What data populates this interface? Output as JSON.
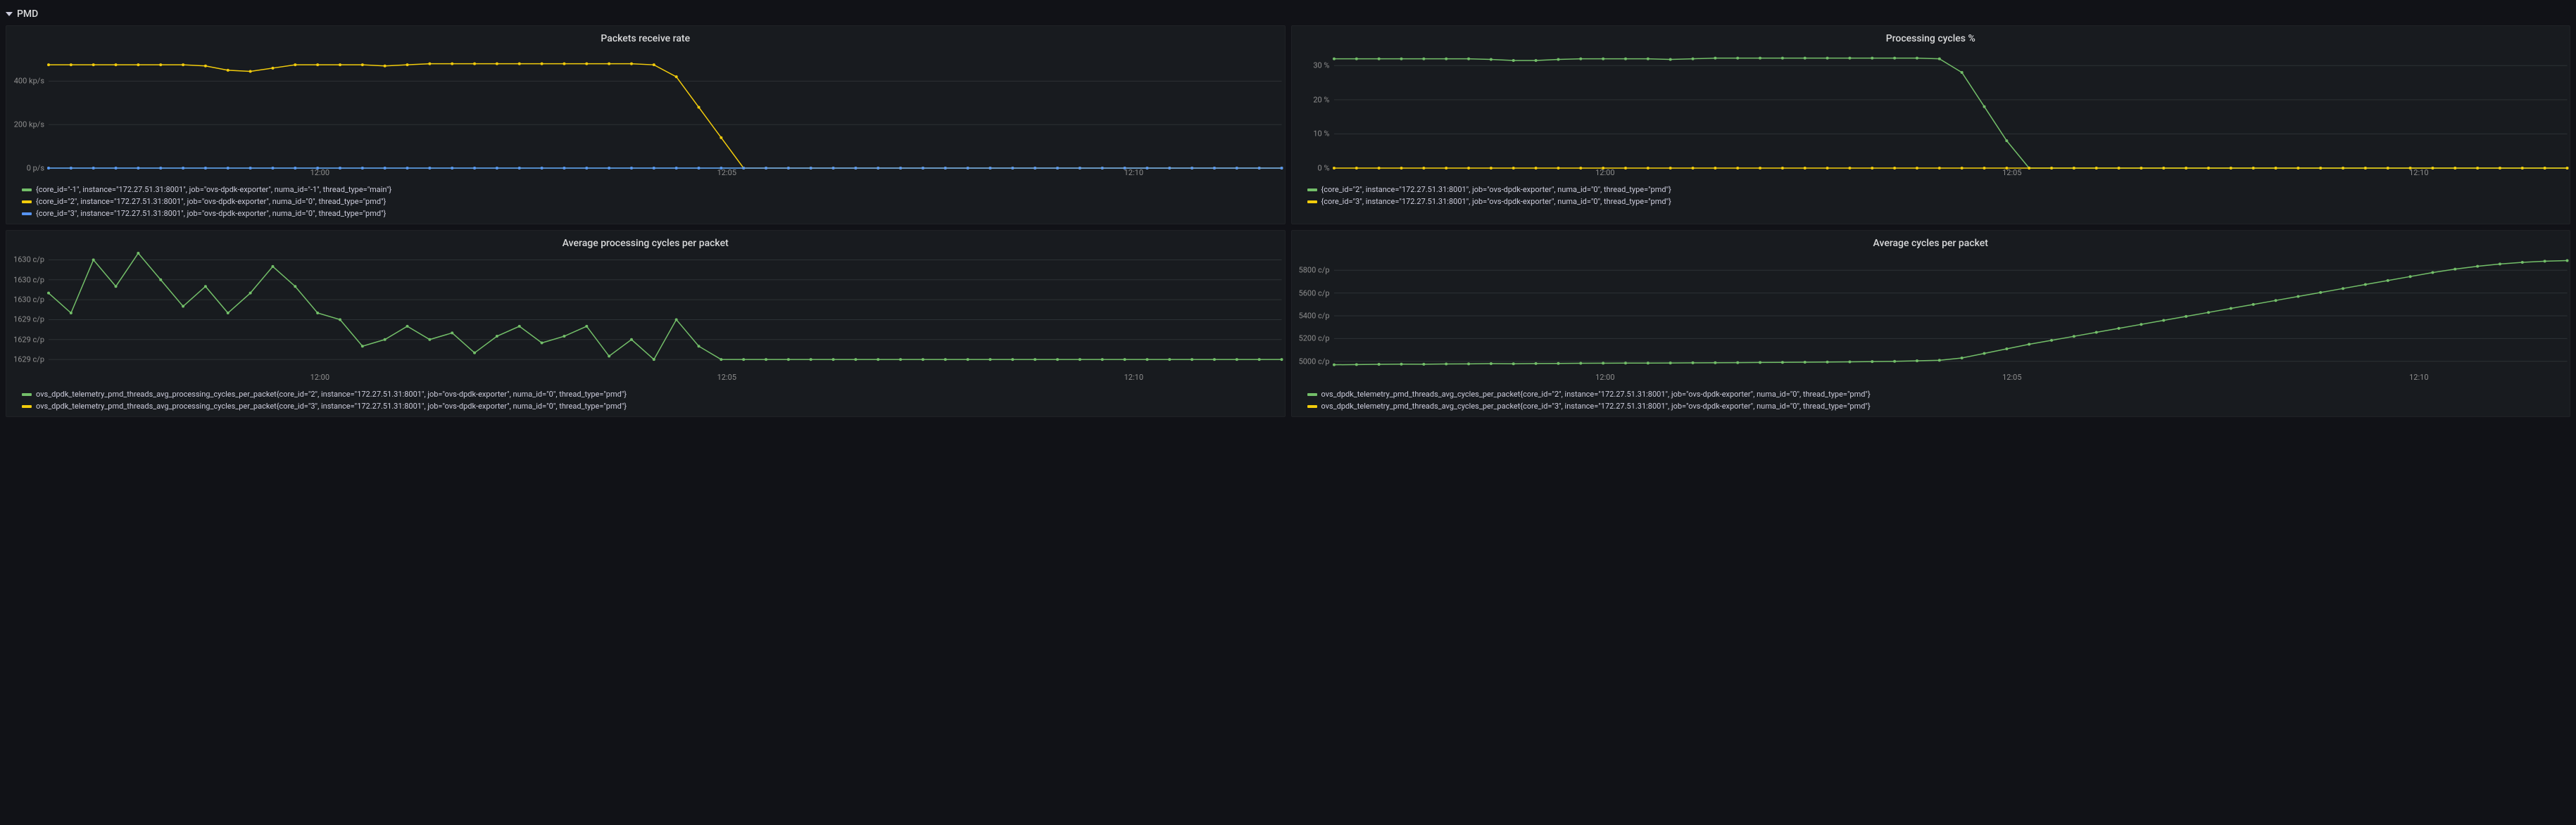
{
  "row": {
    "title": "PMD"
  },
  "colors": {
    "green": "#73bf69",
    "yellow": "#f2cc0c",
    "blue": "#5794f2",
    "bg": "#181b1f",
    "page_bg": "#111217",
    "grid": "#2c3235",
    "text": "#ccccdc",
    "axis_text": "#8e8e8e"
  },
  "xaxis": {
    "ticks": [
      "12:00",
      "12:05",
      "12:10"
    ],
    "tick_positions_pct": [
      22,
      55,
      88
    ],
    "n_points": 56
  },
  "panels": [
    {
      "id": "packets-receive-rate",
      "title": "Packets receive rate",
      "type": "line",
      "ylim": [
        0,
        550
      ],
      "yticks": [
        {
          "label": "0 p/s",
          "value": 0
        },
        {
          "label": "200 kp/s",
          "value": 200
        },
        {
          "label": "400 kp/s",
          "value": 400
        }
      ],
      "series": [
        {
          "color_key": "green",
          "label": "{core_id=\"-1\", instance=\"172.27.51.31:8001\", job=\"ovs-dpdk-exporter\", numa_id=\"-1\", thread_type=\"main\"}",
          "values": [
            0,
            0,
            0,
            0,
            0,
            0,
            0,
            0,
            0,
            0,
            0,
            0,
            0,
            0,
            0,
            0,
            0,
            0,
            0,
            0,
            0,
            0,
            0,
            0,
            0,
            0,
            0,
            0,
            0,
            0,
            0,
            0,
            0,
            0,
            0,
            0,
            0,
            0,
            0,
            0,
            0,
            0,
            0,
            0,
            0,
            0,
            0,
            0,
            0,
            0,
            0,
            0,
            0,
            0,
            0,
            0
          ]
        },
        {
          "color_key": "yellow",
          "label": "{core_id=\"2\", instance=\"172.27.51.31:8001\", job=\"ovs-dpdk-exporter\", numa_id=\"0\", thread_type=\"pmd\"}",
          "values": [
            475,
            475,
            475,
            475,
            475,
            475,
            475,
            470,
            450,
            445,
            460,
            475,
            475,
            475,
            475,
            470,
            475,
            480,
            480,
            480,
            480,
            480,
            480,
            480,
            480,
            480,
            480,
            475,
            420,
            280,
            140,
            0,
            0,
            0,
            0,
            0,
            0,
            0,
            0,
            0,
            0,
            0,
            0,
            0,
            0,
            0,
            0,
            0,
            0,
            0,
            0,
            0,
            0,
            0,
            0,
            0
          ]
        },
        {
          "color_key": "blue",
          "label": "{core_id=\"3\", instance=\"172.27.51.31:8001\", job=\"ovs-dpdk-exporter\", numa_id=\"0\", thread_type=\"pmd\"}",
          "values": [
            0,
            0,
            0,
            0,
            0,
            0,
            0,
            0,
            0,
            0,
            0,
            0,
            0,
            0,
            0,
            0,
            0,
            0,
            0,
            0,
            0,
            0,
            0,
            0,
            0,
            0,
            0,
            0,
            0,
            0,
            0,
            0,
            0,
            0,
            0,
            0,
            0,
            0,
            0,
            0,
            0,
            0,
            0,
            0,
            0,
            0,
            0,
            0,
            0,
            0,
            0,
            0,
            0,
            0,
            0,
            0
          ]
        }
      ]
    },
    {
      "id": "processing-cycles-pct",
      "title": "Processing cycles %",
      "type": "line",
      "ylim": [
        0,
        35
      ],
      "yticks": [
        {
          "label": "0 %",
          "value": 0
        },
        {
          "label": "10 %",
          "value": 10
        },
        {
          "label": "20 %",
          "value": 20
        },
        {
          "label": "30 %",
          "value": 30
        }
      ],
      "series": [
        {
          "color_key": "green",
          "label": "{core_id=\"2\", instance=\"172.27.51.31:8001\", job=\"ovs-dpdk-exporter\", numa_id=\"0\", thread_type=\"pmd\"}",
          "values": [
            32,
            32,
            32,
            32,
            32,
            32,
            32,
            31.8,
            31.5,
            31.5,
            31.8,
            32,
            32,
            32,
            32,
            31.8,
            32,
            32.2,
            32.2,
            32.2,
            32.2,
            32.2,
            32.2,
            32.2,
            32.2,
            32.2,
            32.2,
            32,
            28,
            18,
            8,
            0,
            0,
            0,
            0,
            0,
            0,
            0,
            0,
            0,
            0,
            0,
            0,
            0,
            0,
            0,
            0,
            0,
            0,
            0,
            0,
            0,
            0,
            0,
            0,
            0
          ]
        },
        {
          "color_key": "yellow",
          "label": "{core_id=\"3\", instance=\"172.27.51.31:8001\", job=\"ovs-dpdk-exporter\", numa_id=\"0\", thread_type=\"pmd\"}",
          "values": [
            0,
            0,
            0,
            0,
            0,
            0,
            0,
            0,
            0,
            0,
            0,
            0,
            0,
            0,
            0,
            0,
            0,
            0,
            0,
            0,
            0,
            0,
            0,
            0,
            0,
            0,
            0,
            0,
            0,
            0,
            0,
            0,
            0,
            0,
            0,
            0,
            0,
            0,
            0,
            0,
            0,
            0,
            0,
            0,
            0,
            0,
            0,
            0,
            0,
            0,
            0,
            0,
            0,
            0,
            0,
            0
          ]
        }
      ]
    },
    {
      "id": "avg-proc-cycles-per-packet",
      "title": "Average processing cycles per packet",
      "type": "line",
      "ylim": [
        1628.6,
        1630.4
      ],
      "yticks": [
        {
          "label": "1629 c/p",
          "value": 1628.8
        },
        {
          "label": "1629 c/p",
          "value": 1629.1
        },
        {
          "label": "1629 c/p",
          "value": 1629.4
        },
        {
          "label": "1630 c/p",
          "value": 1629.7
        },
        {
          "label": "1630 c/p",
          "value": 1630.0
        },
        {
          "label": "1630 c/p",
          "value": 1630.3
        }
      ],
      "series": [
        {
          "color_key": "green",
          "label": "ovs_dpdk_telemetry_pmd_threads_avg_processing_cycles_per_packet{core_id=\"2\", instance=\"172.27.51.31:8001\", job=\"ovs-dpdk-exporter\", numa_id=\"0\", thread_type=\"pmd\"}",
          "values": [
            1629.8,
            1629.5,
            1630.3,
            1629.9,
            1630.4,
            1630.0,
            1629.6,
            1629.9,
            1629.5,
            1629.8,
            1630.2,
            1629.9,
            1629.5,
            1629.4,
            1629.0,
            1629.1,
            1629.3,
            1629.1,
            1629.2,
            1628.9,
            1629.15,
            1629.3,
            1629.05,
            1629.15,
            1629.3,
            1628.85,
            1629.1,
            1628.8,
            1629.4,
            1629.0,
            1628.8,
            1628.8,
            1628.8,
            1628.8,
            1628.8,
            1628.8,
            1628.8,
            1628.8,
            1628.8,
            1628.8,
            1628.8,
            1628.8,
            1628.8,
            1628.8,
            1628.8,
            1628.8,
            1628.8,
            1628.8,
            1628.8,
            1628.8,
            1628.8,
            1628.8,
            1628.8,
            1628.8,
            1628.8,
            1628.8
          ]
        },
        {
          "color_key": "yellow",
          "label": "ovs_dpdk_telemetry_pmd_threads_avg_processing_cycles_per_packet{core_id=\"3\", instance=\"172.27.51.31:8001\", job=\"ovs-dpdk-exporter\", numa_id=\"0\", thread_type=\"pmd\"}",
          "no_data": true,
          "values": []
        }
      ]
    },
    {
      "id": "avg-cycles-per-packet",
      "title": "Average cycles per packet",
      "type": "line",
      "ylim": [
        4900,
        5950
      ],
      "yticks": [
        {
          "label": "5000 c/p",
          "value": 5000
        },
        {
          "label": "5200 c/p",
          "value": 5200
        },
        {
          "label": "5400 c/p",
          "value": 5400
        },
        {
          "label": "5600 c/p",
          "value": 5600
        },
        {
          "label": "5800 c/p",
          "value": 5800
        }
      ],
      "series": [
        {
          "color_key": "green",
          "label": "ovs_dpdk_telemetry_pmd_threads_avg_cycles_per_packet{core_id=\"2\", instance=\"172.27.51.31:8001\", job=\"ovs-dpdk-exporter\", numa_id=\"0\", thread_type=\"pmd\"}",
          "values": [
            4970,
            4972,
            4974,
            4976,
            4975,
            4977,
            4978,
            4980,
            4979,
            4981,
            4982,
            4983,
            4984,
            4985,
            4985,
            4986,
            4987,
            4988,
            4989,
            4990,
            4991,
            4993,
            4994,
            4996,
            4998,
            5000,
            5005,
            5010,
            5030,
            5070,
            5110,
            5150,
            5185,
            5220,
            5255,
            5290,
            5325,
            5360,
            5395,
            5430,
            5465,
            5500,
            5535,
            5570,
            5605,
            5640,
            5675,
            5710,
            5745,
            5780,
            5810,
            5835,
            5855,
            5870,
            5880,
            5885
          ]
        },
        {
          "color_key": "yellow",
          "label": "ovs_dpdk_telemetry_pmd_threads_avg_cycles_per_packet{core_id=\"3\", instance=\"172.27.51.31:8001\", job=\"ovs-dpdk-exporter\", numa_id=\"0\", thread_type=\"pmd\"}",
          "no_data": true,
          "values": []
        }
      ]
    }
  ]
}
